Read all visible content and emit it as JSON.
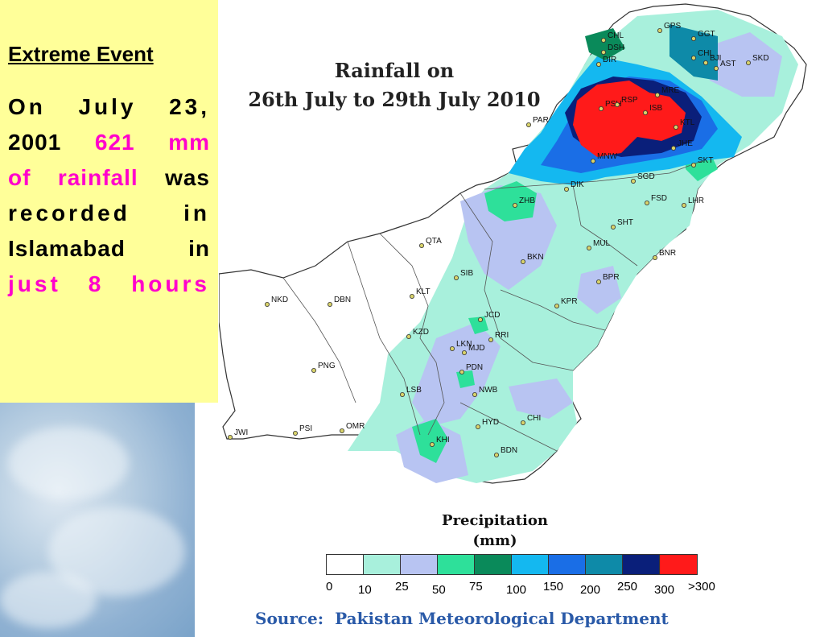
{
  "panel": {
    "heading": "Extreme Event",
    "line1": "On July 23,",
    "line2_plain": "2001",
    "line2_hl": "621 mm",
    "line3_hl": "of rainfall",
    "line3_plain": "was",
    "line4": "recorded in",
    "line5": "Islamabad in",
    "line6_hl": "just 8 hours"
  },
  "map": {
    "title_line1": "Rainfall on",
    "title_line2": "26th July to 29th July 2010",
    "stations": [
      "GPS",
      "GGT",
      "CHL",
      "DSH",
      "DIR",
      "SKD",
      "CHL",
      "BJI",
      "AST",
      "PSH",
      "RSP",
      "MRE",
      "ISB",
      "KTL",
      "JHE",
      "SKT",
      "PAR",
      "MNW",
      "SGD",
      "DIK",
      "FSD",
      "LHR",
      "ZHB",
      "SHT",
      "MUL",
      "QTA",
      "BKN",
      "BNR",
      "SIB",
      "BPR",
      "KLT",
      "NKD",
      "DBN",
      "KPR",
      "KZD",
      "JCD",
      "RRI",
      "LKN",
      "MJD",
      "PDN",
      "PNG",
      "NWB",
      "LSB",
      "PSI",
      "OMR",
      "JWI",
      "HYD",
      "CHI",
      "KHI",
      "BDN"
    ],
    "colors": {
      "land_white": "#ffffff",
      "c10": "#a8f0dc",
      "c25": "#b8c4f2",
      "c50": "#2ee09a",
      "c75": "#0a8a5a",
      "c100": "#14b8f0",
      "c150": "#1a6ee6",
      "c200": "#0e8aa8",
      "c250": "#0a1f7a",
      "c300": "#ff1a1a"
    }
  },
  "legend": {
    "title_line1": "Precipitation",
    "title_line2": "(mm)",
    "swatches": [
      "#ffffff",
      "#a8f0dc",
      "#b8c4f2",
      "#2ee09a",
      "#0a8a5a",
      "#14b8f0",
      "#1a6ee6",
      "#0e8aa8",
      "#0a1f7a",
      "#ff1a1a"
    ],
    "ticks": [
      "0",
      "10",
      "25",
      "50",
      "75",
      "100",
      "150",
      "200",
      "250",
      "300",
      ">300"
    ]
  },
  "source": {
    "label": "Source:",
    "name": "Pakistan Meteorological Department"
  }
}
